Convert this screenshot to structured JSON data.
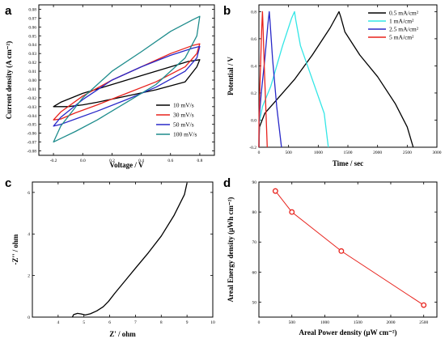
{
  "chart_data": [
    {
      "id": "a",
      "letter": "a",
      "type": "line",
      "xlabel": "Voltage / V",
      "ylabel": "Current density (A cm⁻²)",
      "xlim": [
        -0.3,
        0.9
      ],
      "ylim": [
        -0.085,
        0.085
      ],
      "xticks": [
        -0.2,
        0.0,
        0.2,
        0.4,
        0.6,
        0.8
      ],
      "xtick_labels": [
        "-0.2",
        "0.0",
        "0.2",
        "0.4",
        "0.6",
        "0.8"
      ],
      "yticks": [
        -0.08,
        -0.07,
        -0.06,
        -0.05,
        -0.04,
        -0.03,
        -0.02,
        -0.01,
        0.0,
        0.01,
        0.02,
        0.03,
        0.04,
        0.05,
        0.06,
        0.07,
        0.08
      ],
      "ytick_labels": [
        "-0.08",
        "-0.07",
        "-0.06",
        "-0.05",
        "-0.04",
        "-0.03",
        "-0.02",
        "-0.01",
        "0.00",
        "0.01",
        "0.02",
        "0.03",
        "0.04",
        "0.05",
        "0.06",
        "0.07",
        "0.08"
      ],
      "legend": "bottom-right",
      "series": [
        {
          "name": "10 mV/s",
          "color": "#000000",
          "x": [
            -0.2,
            -0.15,
            0.0,
            0.2,
            0.4,
            0.6,
            0.72,
            0.8,
            0.78,
            0.7,
            0.5,
            0.3,
            0.1,
            0.0,
            -0.1,
            -0.2
          ],
          "y": [
            -0.03,
            -0.025,
            -0.015,
            -0.005,
            0.005,
            0.015,
            0.021,
            0.023,
            0.015,
            -0.002,
            -0.011,
            -0.018,
            -0.025,
            -0.028,
            -0.03,
            -0.03
          ]
        },
        {
          "name": "30 mV/s",
          "color": "#e8221c",
          "x": [
            -0.2,
            -0.15,
            0.0,
            0.2,
            0.4,
            0.6,
            0.75,
            0.8,
            0.78,
            0.7,
            0.5,
            0.3,
            0.1,
            -0.05,
            -0.15,
            -0.2
          ],
          "y": [
            -0.045,
            -0.036,
            -0.018,
            0.0,
            0.015,
            0.03,
            0.039,
            0.041,
            0.03,
            0.015,
            -0.002,
            -0.015,
            -0.028,
            -0.037,
            -0.044,
            -0.045
          ]
        },
        {
          "name": "50 mV/s",
          "color": "#2828c8",
          "x": [
            -0.2,
            -0.15,
            0.0,
            0.2,
            0.4,
            0.6,
            0.75,
            0.8,
            0.78,
            0.7,
            0.5,
            0.3,
            0.1,
            -0.05,
            -0.15,
            -0.2
          ],
          "y": [
            -0.052,
            -0.042,
            -0.022,
            0.0,
            0.015,
            0.028,
            0.036,
            0.038,
            0.025,
            0.01,
            -0.008,
            -0.022,
            -0.035,
            -0.044,
            -0.05,
            -0.052
          ]
        },
        {
          "name": "100 mV/s",
          "color": "#1e8c8c",
          "x": [
            -0.2,
            -0.15,
            0.0,
            0.2,
            0.4,
            0.6,
            0.75,
            0.8,
            0.78,
            0.7,
            0.5,
            0.3,
            0.1,
            -0.05,
            -0.15,
            -0.2
          ],
          "y": [
            -0.07,
            -0.052,
            -0.02,
            0.01,
            0.032,
            0.055,
            0.068,
            0.072,
            0.05,
            0.025,
            -0.005,
            -0.025,
            -0.045,
            -0.058,
            -0.066,
            -0.07
          ]
        }
      ]
    },
    {
      "id": "b",
      "letter": "b",
      "type": "line",
      "xlabel": "Time / sec",
      "ylabel": "Potential / V",
      "xlim": [
        0,
        3000
      ],
      "ylim": [
        -0.2,
        0.85
      ],
      "xticks": [
        0,
        500,
        1000,
        1500,
        2000,
        2500,
        3000
      ],
      "xtick_labels": [
        "0",
        "500",
        "1000",
        "1500",
        "2000",
        "2500",
        "3000"
      ],
      "yticks": [
        -0.2,
        0.0,
        0.2,
        0.4,
        0.6,
        0.8
      ],
      "ytick_labels": [
        "-0.2",
        "0.0",
        "0.2",
        "0.4",
        "0.6",
        "0.8"
      ],
      "legend": "top-right",
      "series": [
        {
          "name": "0.5 mA/cm²",
          "color": "#000000",
          "x": [
            0,
            10,
            100,
            300,
            600,
            900,
            1200,
            1350,
            1380,
            1450,
            1700,
            2000,
            2300,
            2500,
            2600
          ],
          "y": [
            -0.2,
            -0.05,
            0.05,
            0.15,
            0.3,
            0.48,
            0.68,
            0.8,
            0.76,
            0.65,
            0.48,
            0.32,
            0.12,
            -0.05,
            -0.2
          ]
        },
        {
          "name": "1 mA/cm²",
          "color": "#33e6e6",
          "x": [
            0,
            5,
            60,
            200,
            400,
            550,
            600,
            620,
            700,
            900,
            1100,
            1170
          ],
          "y": [
            -0.2,
            -0.02,
            0.1,
            0.25,
            0.55,
            0.75,
            0.8,
            0.74,
            0.55,
            0.3,
            0.05,
            -0.2
          ]
        },
        {
          "name": "2.5 mA/cm²",
          "color": "#2828c8",
          "x": [
            0,
            3,
            40,
            100,
            150,
            175,
            185,
            230,
            300,
            380
          ],
          "y": [
            -0.2,
            0.0,
            0.2,
            0.45,
            0.7,
            0.8,
            0.74,
            0.45,
            0.1,
            -0.2
          ]
        },
        {
          "name": "5 mA/cm²",
          "color": "#e8221c",
          "x": [
            0,
            2,
            20,
            45,
            60,
            65,
            90,
            120,
            140
          ],
          "y": [
            -0.2,
            0.0,
            0.3,
            0.65,
            0.8,
            0.74,
            0.4,
            0.05,
            -0.2
          ]
        }
      ]
    },
    {
      "id": "c",
      "letter": "c",
      "type": "line",
      "xlabel": "Z' / ohm",
      "ylabel": "-Z'' / ohm",
      "xlim": [
        3,
        10
      ],
      "ylim": [
        0,
        6.5
      ],
      "xticks": [
        4,
        5,
        6,
        7,
        8,
        9,
        10
      ],
      "xtick_labels": [
        "4",
        "5",
        "6",
        "7",
        "8",
        "9",
        "10"
      ],
      "yticks": [
        0,
        2,
        4,
        6
      ],
      "ytick_labels": [
        "0",
        "2",
        "4",
        "6"
      ],
      "series": [
        {
          "name": "",
          "color": "#000000",
          "x": [
            4.55,
            4.6,
            4.75,
            4.9,
            5.05,
            5.25,
            5.5,
            5.75,
            5.95,
            6.2,
            6.6,
            7.0,
            7.5,
            8.0,
            8.5,
            8.9,
            9.0
          ],
          "y": [
            0.0,
            0.12,
            0.18,
            0.15,
            0.1,
            0.16,
            0.3,
            0.5,
            0.75,
            1.15,
            1.75,
            2.35,
            3.1,
            3.9,
            4.9,
            5.9,
            6.45
          ]
        }
      ]
    },
    {
      "id": "d",
      "letter": "d",
      "type": "scatter",
      "xlabel": "Areal Power density (μW cm⁻²)",
      "ylabel": "Areal Energy density (μWh cm⁻²)",
      "xlim": [
        0,
        2700
      ],
      "ylim": [
        45,
        90
      ],
      "xticks": [
        0,
        500,
        1000,
        1500,
        2000,
        2500
      ],
      "xtick_labels": [
        "0",
        "500",
        "1000",
        "1500",
        "2000",
        "2500"
      ],
      "yticks": [
        50,
        60,
        70,
        80,
        90
      ],
      "ytick_labels": [
        "50",
        "60",
        "70",
        "80",
        "90"
      ],
      "series": [
        {
          "name": "",
          "color": "#e8221c",
          "x": [
            250,
            500,
            1250,
            2500
          ],
          "y": [
            87,
            80,
            67,
            49
          ]
        }
      ]
    }
  ]
}
